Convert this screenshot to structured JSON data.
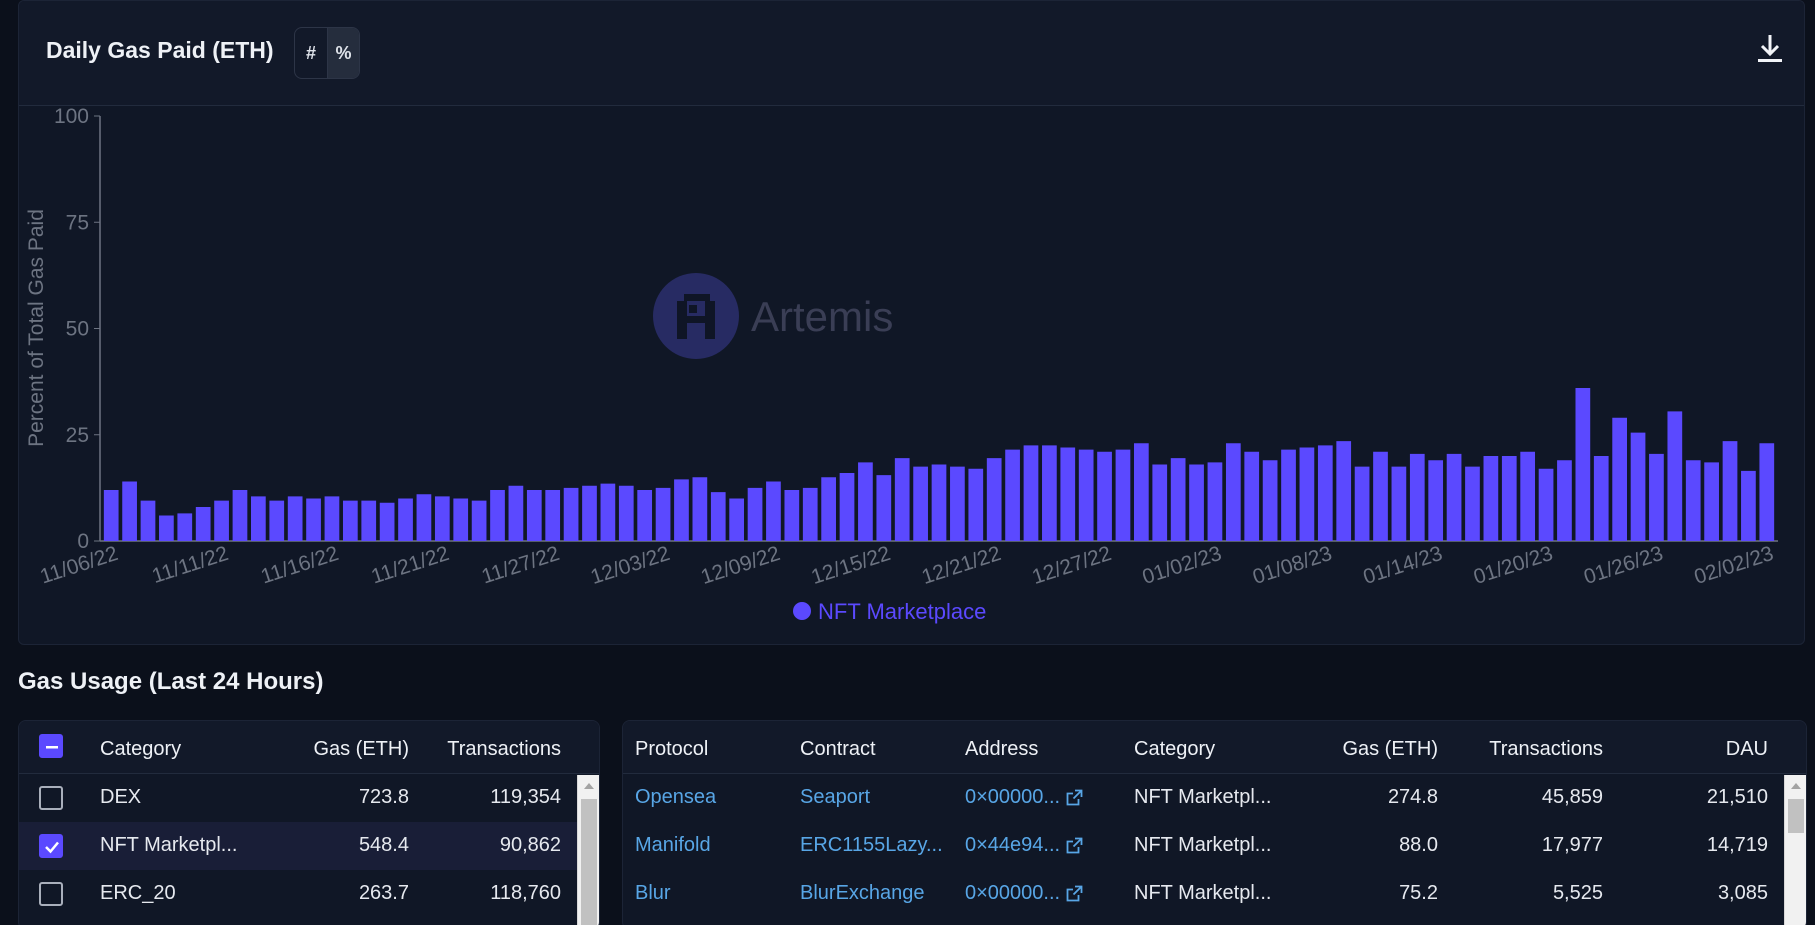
{
  "chart": {
    "title": "Daily Gas Paid (ETH)",
    "mode_toggle": [
      "#",
      "%"
    ],
    "active_mode": "%",
    "download_icon": "download-icon",
    "watermark": "Artemis",
    "bar_color": "#5b49ff"
  },
  "chart_data": {
    "type": "bar",
    "ylabel": "Percent of Total Gas Paid",
    "ylim": [
      0,
      100
    ],
    "yticks": [
      "0",
      "25",
      "50",
      "75",
      "100"
    ],
    "x_tick_labels": [
      "11/06/22",
      "11/11/22",
      "11/16/22",
      "11/21/22",
      "11/27/22",
      "12/03/22",
      "12/09/22",
      "12/15/22",
      "12/21/22",
      "12/27/22",
      "01/02/23",
      "01/08/23",
      "01/14/23",
      "01/20/23",
      "01/26/23",
      "02/02/23"
    ],
    "legend_position": "bottom-center",
    "series": [
      {
        "name": "NFT Marketplace",
        "color": "#5b49ff",
        "values": [
          12,
          14,
          9.5,
          6,
          6.5,
          8,
          9.5,
          12,
          10.5,
          9.5,
          10.5,
          10,
          10.5,
          9.5,
          9.5,
          9,
          10,
          11,
          10.5,
          10,
          9.5,
          12,
          13,
          12,
          12,
          12.5,
          13,
          13.5,
          13,
          12,
          12.5,
          14.5,
          15,
          11.5,
          10,
          12.5,
          14,
          12,
          12.5,
          15,
          16,
          18.5,
          15.5,
          19.5,
          17.5,
          18,
          17.5,
          17,
          19.5,
          21.5,
          22.5,
          22.5,
          22,
          21.5,
          21,
          21.5,
          23,
          18,
          19.5,
          18,
          18.5,
          23,
          21,
          19,
          21.5,
          22,
          22.5,
          23.5,
          17.5,
          21,
          17.5,
          20.5,
          19,
          20.5,
          17.5,
          20,
          20,
          21,
          17,
          19,
          36,
          20,
          29,
          25.5,
          20.5,
          30.5,
          19,
          18.5,
          23.5,
          16.5,
          23
        ]
      }
    ]
  },
  "gas_usage": {
    "title": "Gas Usage (Last 24 Hours)",
    "category_table": {
      "headers": [
        "Category",
        "Gas (ETH)",
        "Transactions"
      ],
      "rows": [
        {
          "category": "DEX",
          "gas": "723.8",
          "transactions": "119,354",
          "checked": false
        },
        {
          "category": "NFT Marketpl...",
          "gas": "548.4",
          "transactions": "90,862",
          "checked": true
        },
        {
          "category": "ERC_20",
          "gas": "263.7",
          "transactions": "118,760",
          "checked": false
        }
      ]
    },
    "protocol_table": {
      "headers": [
        "Protocol",
        "Contract",
        "Address",
        "Category",
        "Gas (ETH)",
        "Transactions",
        "DAU"
      ],
      "rows": [
        {
          "protocol": "Opensea",
          "contract": "Seaport",
          "address": "0×00000...",
          "category": "NFT Marketpl...",
          "gas": "274.8",
          "transactions": "45,859",
          "dau": "21,510"
        },
        {
          "protocol": "Manifold",
          "contract": "ERC1155Lazy...",
          "address": "0×44e94...",
          "category": "NFT Marketpl...",
          "gas": "88.0",
          "transactions": "17,977",
          "dau": "14,719"
        },
        {
          "protocol": "Blur",
          "contract": "BlurExchange",
          "address": "0×00000...",
          "category": "NFT Marketpl...",
          "gas": "75.2",
          "transactions": "5,525",
          "dau": "3,085"
        }
      ]
    }
  }
}
